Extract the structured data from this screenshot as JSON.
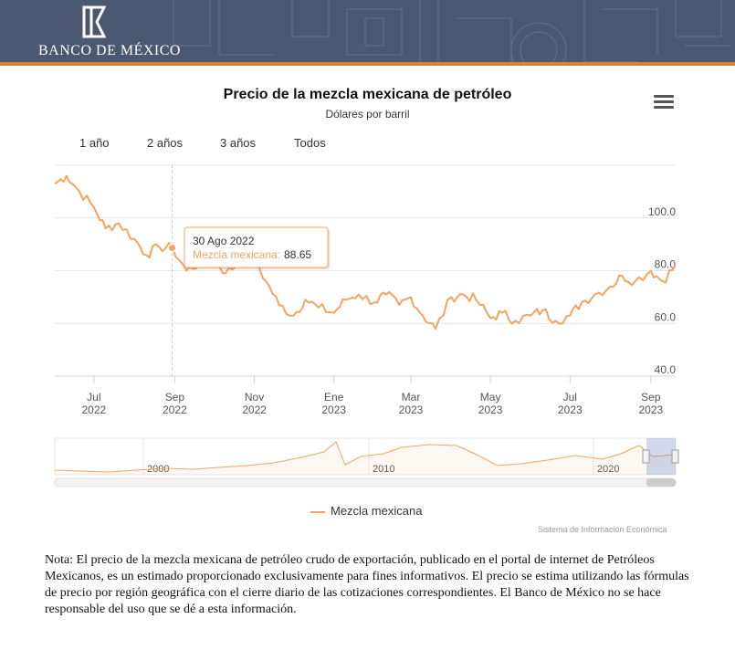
{
  "header": {
    "logo_text": "BANCO DE MÉXICO",
    "brand_color": "#4b5872",
    "accent_color": "#e07f2b"
  },
  "menu_icon": "hamburger-menu-icon",
  "range_selector": [
    {
      "label": "1 año"
    },
    {
      "label": "2 años"
    },
    {
      "label": "3 años"
    },
    {
      "label": "Todos"
    }
  ],
  "tooltip": {
    "date": "30 Ago 2022",
    "series": "Mezcla mexicana",
    "value": "88.65"
  },
  "legend": {
    "label": "Mezcla mexicana",
    "color": "#f4a460"
  },
  "credits": "Sistema de Información Económica",
  "note": "Nota: El precio de la mezcla mexicana de petróleo crudo de exportación, publicado en el portal de internet de Petróleos Mexicanos, es un estimado proporcionado exclusivamente para fines informativos. El precio se estima utilizando las fórmulas de precio por región geográfica con el cierre diario de las cotizaciones correspondientes. El Banco de México no se hace responsable del uso que se dé a esta información.",
  "chart_data": {
    "type": "line",
    "title": "Precio de la mezcla mexicana de petróleo",
    "subtitle": "Dólares por barril",
    "xlabel": "",
    "ylabel": "",
    "ylim": [
      40,
      120
    ],
    "yticks": [
      "100.0",
      "80.0",
      "60.0",
      "40.0"
    ],
    "xticks": [
      {
        "month": "Jul",
        "year": "2022"
      },
      {
        "month": "Sep",
        "year": "2022"
      },
      {
        "month": "Nov",
        "year": "2022"
      },
      {
        "month": "Ene",
        "year": "2023"
      },
      {
        "month": "Mar",
        "year": "2023"
      },
      {
        "month": "May",
        "year": "2023"
      },
      {
        "month": "Jul",
        "year": "2023"
      },
      {
        "month": "Sep",
        "year": "2023"
      }
    ],
    "grid": true,
    "series": [
      {
        "name": "Mezcla mexicana",
        "color": "#f4a460",
        "x": [
          "2022-06-01",
          "2022-06-10",
          "2022-06-20",
          "2022-07-01",
          "2022-07-10",
          "2022-07-20",
          "2022-08-01",
          "2022-08-10",
          "2022-08-20",
          "2022-08-30",
          "2022-09-10",
          "2022-09-20",
          "2022-10-01",
          "2022-10-10",
          "2022-10-20",
          "2022-11-01",
          "2022-11-10",
          "2022-11-20",
          "2022-12-01",
          "2022-12-10",
          "2022-12-20",
          "2023-01-01",
          "2023-01-10",
          "2023-01-20",
          "2023-02-01",
          "2023-02-10",
          "2023-02-20",
          "2023-03-01",
          "2023-03-10",
          "2023-03-20",
          "2023-04-01",
          "2023-04-10",
          "2023-04-20",
          "2023-05-01",
          "2023-05-10",
          "2023-05-20",
          "2023-06-01",
          "2023-06-10",
          "2023-06-20",
          "2023-07-01",
          "2023-07-10",
          "2023-07-20",
          "2023-08-01",
          "2023-08-10",
          "2023-08-20",
          "2023-09-01",
          "2023-09-10",
          "2023-09-20"
        ],
        "values": [
          113,
          116,
          110,
          104,
          96,
          98,
          92,
          86,
          89,
          88.65,
          80,
          83,
          85,
          79,
          83,
          84,
          76,
          67,
          63,
          69,
          66,
          64,
          69,
          71,
          68,
          71,
          67,
          70,
          63,
          58,
          70,
          71,
          69,
          62,
          64,
          61,
          63,
          65,
          61,
          63,
          68,
          71,
          74,
          78,
          76,
          80,
          76,
          82
        ]
      }
    ],
    "navigator": {
      "xticks": [
        "2000",
        "2010",
        "2020"
      ],
      "window": "right"
    }
  }
}
